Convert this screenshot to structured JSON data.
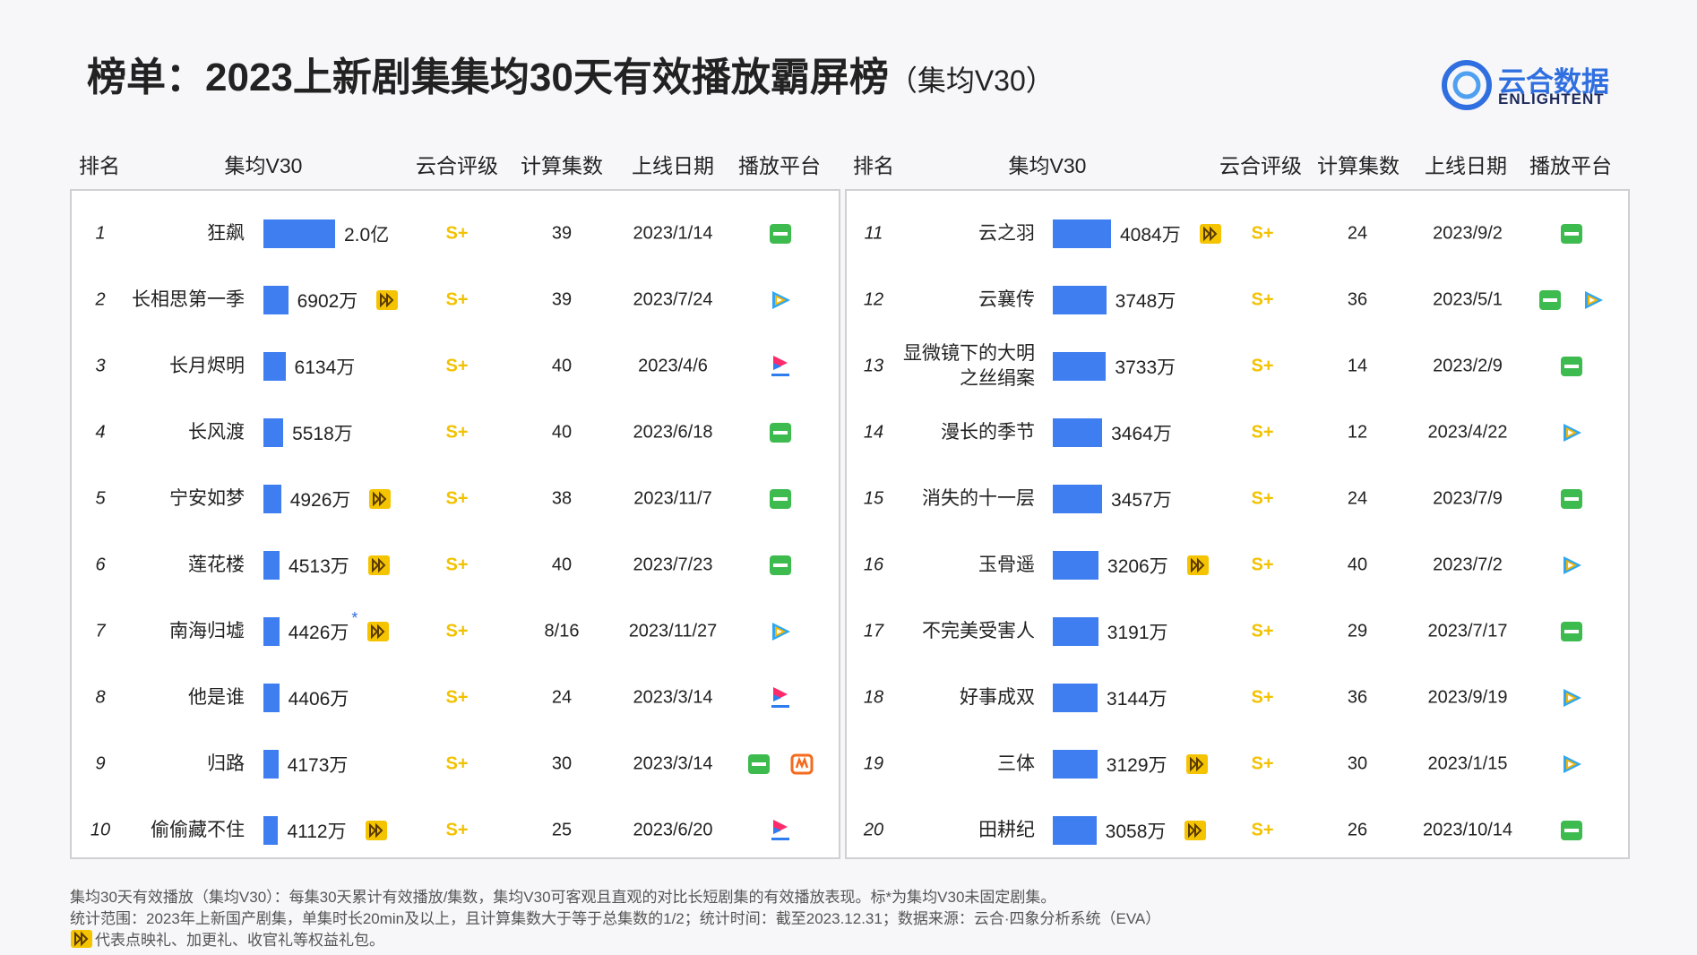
{
  "header": {
    "title": "榜单：2023上新剧集集均30天有效播放霸屏榜",
    "subtitle": "（集均V30）",
    "logo_text": "云合数据",
    "logo_sub": "ENLIGHTENT"
  },
  "columns": [
    "排名",
    "集均V30",
    "云合评级",
    "计算集数",
    "上线日期",
    "播放平台"
  ],
  "panels": [
    {
      "rows": [
        {
          "rank": "1",
          "name": "狂飙",
          "v30": 20000,
          "v30_label": "2.0亿",
          "badge": false,
          "rating": "S+",
          "episodes": "39",
          "date": "2023/1/14",
          "platforms": [
            "iqiyi"
          ]
        },
        {
          "rank": "2",
          "name": "长相思第一季",
          "v30": 6902,
          "v30_label": "6902万",
          "badge": true,
          "rating": "S+",
          "episodes": "39",
          "date": "2023/7/24",
          "platforms": [
            "tencent"
          ]
        },
        {
          "rank": "3",
          "name": "长月烬明",
          "v30": 6134,
          "v30_label": "6134万",
          "badge": false,
          "rating": "S+",
          "episodes": "40",
          "date": "2023/4/6",
          "platforms": [
            "youku"
          ]
        },
        {
          "rank": "4",
          "name": "长风渡",
          "v30": 5518,
          "v30_label": "5518万",
          "badge": false,
          "rating": "S+",
          "episodes": "40",
          "date": "2023/6/18",
          "platforms": [
            "iqiyi"
          ]
        },
        {
          "rank": "5",
          "name": "宁安如梦",
          "v30": 4926,
          "v30_label": "4926万",
          "badge": true,
          "rating": "S+",
          "episodes": "38",
          "date": "2023/11/7",
          "platforms": [
            "iqiyi"
          ]
        },
        {
          "rank": "6",
          "name": "莲花楼",
          "v30": 4513,
          "v30_label": "4513万",
          "badge": true,
          "rating": "S+",
          "episodes": "40",
          "date": "2023/7/23",
          "platforms": [
            "iqiyi"
          ]
        },
        {
          "rank": "7",
          "name": "南海归墟",
          "v30": 4426,
          "v30_label": "4426万",
          "note_mark": "*",
          "badge": true,
          "rating": "S+",
          "episodes": "8/16",
          "date": "2023/11/27",
          "platforms": [
            "tencent"
          ]
        },
        {
          "rank": "8",
          "name": "他是谁",
          "v30": 4406,
          "v30_label": "4406万",
          "badge": false,
          "rating": "S+",
          "episodes": "24",
          "date": "2023/3/14",
          "platforms": [
            "youku"
          ]
        },
        {
          "rank": "9",
          "name": "归路",
          "v30": 4173,
          "v30_label": "4173万",
          "badge": false,
          "rating": "S+",
          "episodes": "30",
          "date": "2023/3/14",
          "platforms": [
            "iqiyi",
            "mgtv"
          ]
        },
        {
          "rank": "10",
          "name": "偷偷藏不住",
          "v30": 4112,
          "v30_label": "4112万",
          "badge": true,
          "rating": "S+",
          "episodes": "25",
          "date": "2023/6/20",
          "platforms": [
            "youku"
          ]
        }
      ]
    },
    {
      "rows": [
        {
          "rank": "11",
          "name": "云之羽",
          "v30": 4084,
          "v30_label": "4084万",
          "badge": true,
          "rating": "S+",
          "episodes": "24",
          "date": "2023/9/2",
          "platforms": [
            "iqiyi"
          ]
        },
        {
          "rank": "12",
          "name": "云襄传",
          "v30": 3748,
          "v30_label": "3748万",
          "badge": false,
          "rating": "S+",
          "episodes": "36",
          "date": "2023/5/1",
          "platforms": [
            "iqiyi",
            "tencent"
          ]
        },
        {
          "rank": "13",
          "name": "显微镜下的大明\n之丝绢案",
          "v30": 3733,
          "v30_label": "3733万",
          "badge": false,
          "rating": "S+",
          "episodes": "14",
          "date": "2023/2/9",
          "platforms": [
            "iqiyi"
          ]
        },
        {
          "rank": "14",
          "name": "漫长的季节",
          "v30": 3464,
          "v30_label": "3464万",
          "badge": false,
          "rating": "S+",
          "episodes": "12",
          "date": "2023/4/22",
          "platforms": [
            "tencent"
          ]
        },
        {
          "rank": "15",
          "name": "消失的十一层",
          "v30": 3457,
          "v30_label": "3457万",
          "badge": false,
          "rating": "S+",
          "episodes": "24",
          "date": "2023/7/9",
          "platforms": [
            "iqiyi"
          ]
        },
        {
          "rank": "16",
          "name": "玉骨遥",
          "v30": 3206,
          "v30_label": "3206万",
          "badge": true,
          "rating": "S+",
          "episodes": "40",
          "date": "2023/7/2",
          "platforms": [
            "tencent"
          ]
        },
        {
          "rank": "17",
          "name": "不完美受害人",
          "v30": 3191,
          "v30_label": "3191万",
          "badge": false,
          "rating": "S+",
          "episodes": "29",
          "date": "2023/7/17",
          "platforms": [
            "iqiyi"
          ]
        },
        {
          "rank": "18",
          "name": "好事成双",
          "v30": 3144,
          "v30_label": "3144万",
          "badge": false,
          "rating": "S+",
          "episodes": "36",
          "date": "2023/9/19",
          "platforms": [
            "tencent"
          ]
        },
        {
          "rank": "19",
          "name": "三体",
          "v30": 3129,
          "v30_label": "3129万",
          "badge": true,
          "rating": "S+",
          "episodes": "30",
          "date": "2023/1/15",
          "platforms": [
            "tencent"
          ]
        },
        {
          "rank": "20",
          "name": "田耕纪",
          "v30": 3058,
          "v30_label": "3058万",
          "badge": true,
          "rating": "S+",
          "episodes": "26",
          "date": "2023/10/14",
          "platforms": [
            "iqiyi"
          ]
        }
      ]
    }
  ],
  "footnotes": [
    "集均30天有效播放（集均V30）：每集30天累计有效播放/集数，集均V30可客观且直观的对比长短剧集的有效播放表现。标*为集均V30未固定剧集。",
    "统计范围：2023年上新国产剧集，单集时长20min及以上，且计算集数大于等于总集数的1/2；统计时间：截至2023.12.31；数据来源：云合·四象分析系统（EVA）",
    "代表点映礼、加更礼、收官礼等权益礼包。"
  ]
}
